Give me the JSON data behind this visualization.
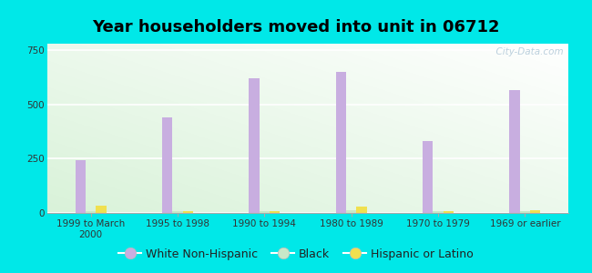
{
  "title": "Year householders moved into unit in 06712",
  "categories": [
    "1999 to March\n2000",
    "1995 to 1998",
    "1990 to 1994",
    "1980 to 1989",
    "1970 to 1979",
    "1969 or earlier"
  ],
  "white_non_hispanic": [
    245,
    440,
    620,
    650,
    330,
    565
  ],
  "black": [
    10,
    8,
    7,
    14,
    8,
    9
  ],
  "hispanic_or_latino": [
    32,
    9,
    7,
    28,
    9,
    12
  ],
  "bar_width": 0.12,
  "white_color": "#c8aee0",
  "black_color": "#c8e8c8",
  "hispanic_color": "#f0e050",
  "ylim": [
    0,
    780
  ],
  "yticks": [
    0,
    250,
    500,
    750
  ],
  "background_outer": "#00e8e8",
  "grid_color": "#ffffff",
  "title_fontsize": 13,
  "tick_fontsize": 7.5,
  "legend_fontsize": 9,
  "watermark": "  City-Data.com"
}
